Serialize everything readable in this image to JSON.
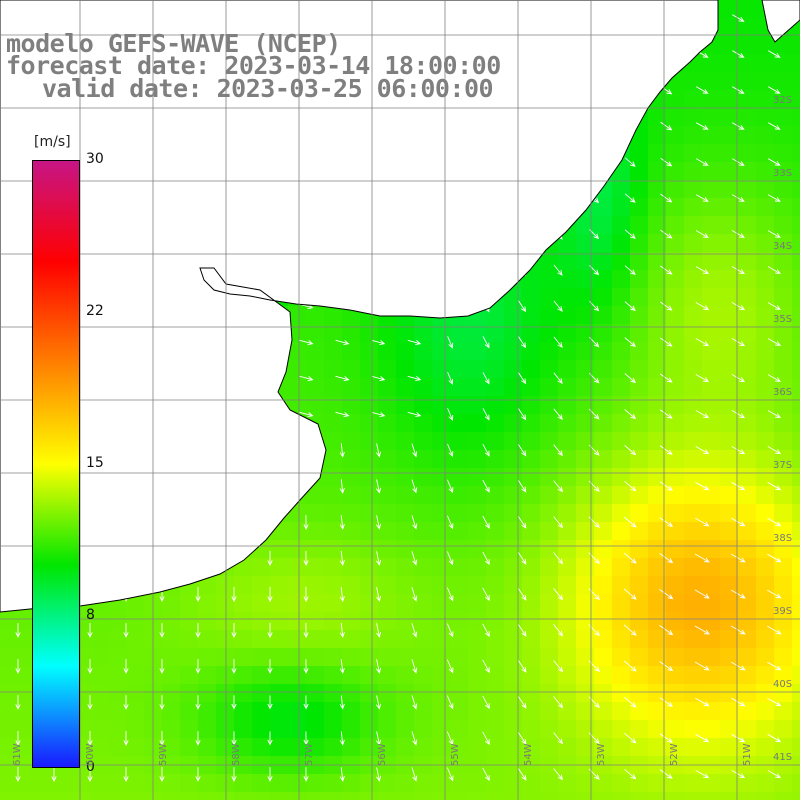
{
  "header": {
    "model": "modelo GEFS-WAVE (NCEP)",
    "forecast": "forecast date: 2023-03-14 18:00:00",
    "valid": "valid date: 2023-03-25 06:00:00"
  },
  "colorbar": {
    "unit": "[m/s]",
    "range": [
      0,
      30
    ],
    "ticks": [
      "30",
      "22",
      "15",
      "8",
      "0"
    ],
    "tick_values": [
      30,
      22,
      15,
      8,
      0
    ],
    "stops": [
      "#1a1aff",
      "#00ffff",
      "#00e600",
      "#ffff00",
      "#ff7f00",
      "#ff0000",
      "#c71585"
    ]
  },
  "map": {
    "lat_labels": [
      "32S",
      "33S",
      "34S",
      "35S",
      "36S",
      "37S",
      "38S",
      "39S",
      "40S",
      "41S"
    ],
    "lon_labels": [
      "61W",
      "60W",
      "59W",
      "58W",
      "57W",
      "56W",
      "55W",
      "54W",
      "53W",
      "52W",
      "51W"
    ],
    "land_color": "#ffffff",
    "coast_color": "#000000",
    "grid_color": "#808080",
    "arrow_color": "#ffffff"
  }
}
